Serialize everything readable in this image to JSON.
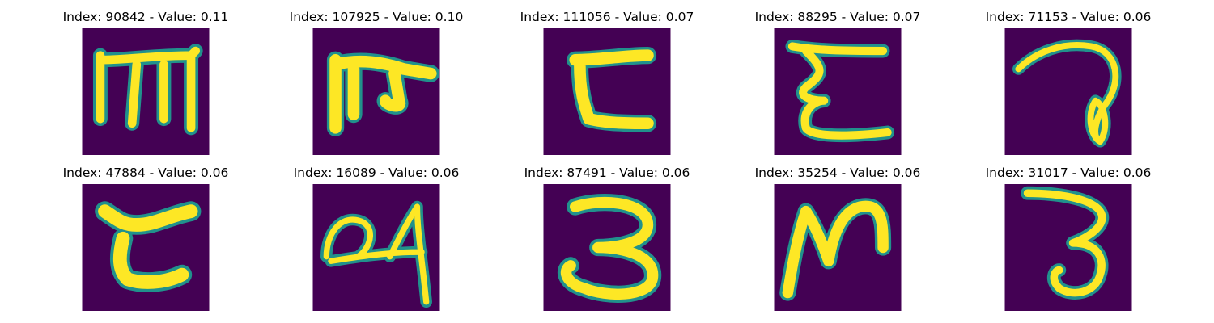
{
  "colors": {
    "background": "#440154",
    "stroke_edge": "#21918c",
    "stroke_mid": "#5ec962",
    "stroke_core": "#fde725"
  },
  "tiles": [
    {
      "title": "Index: 90842 - Value: 0.11",
      "glyph": "ma-like"
    },
    {
      "title": "Index: 107925 - Value: 0.10",
      "glyph": "pa-like"
    },
    {
      "title": "Index: 111056 - Value: 0.07",
      "glyph": "za-like"
    },
    {
      "title": "Index: 88295 - Value: 0.07",
      "glyph": "epsilon-like"
    },
    {
      "title": "Index: 71153 - Value: 0.06",
      "glyph": "loop-7-like"
    },
    {
      "title": "Index: 47884 - Value: 0.06",
      "glyph": "za-like"
    },
    {
      "title": "Index: 16089 - Value: 0.06",
      "glyph": "loop-4-like"
    },
    {
      "title": "Index: 87491 - Value: 0.06",
      "glyph": "three-like"
    },
    {
      "title": "Index: 35254 - Value: 0.06",
      "glyph": "n-like"
    },
    {
      "title": "Index: 31017 - Value: 0.06",
      "glyph": "three-like"
    }
  ]
}
